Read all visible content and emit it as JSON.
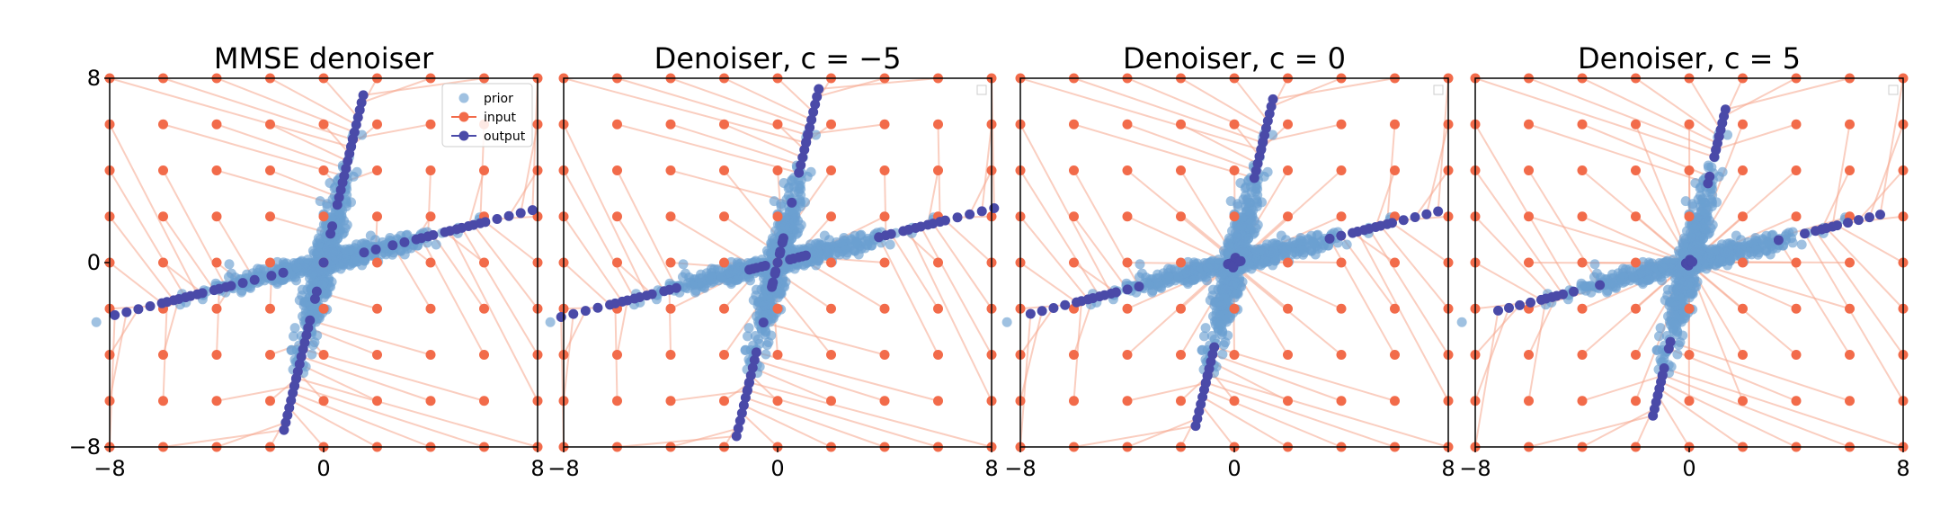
{
  "colors": {
    "prior": "#6b9fd1",
    "input": "#f26b4a",
    "output": "#4a4aa8",
    "line": "#f5a58d"
  },
  "chart_data": [
    {
      "type": "scatter",
      "title": "MMSE denoiser",
      "xlim": [
        -8,
        8
      ],
      "ylim": [
        -8,
        8
      ],
      "xticks": [
        "−8",
        "0",
        "8"
      ],
      "yticks": [
        "−8",
        "0",
        "8"
      ],
      "show_yticks": true,
      "legend": {
        "position": "top-right",
        "entries": [
          "prior",
          "input",
          "output"
        ]
      },
      "output_mode": "mmse",
      "grid": false
    },
    {
      "type": "scatter",
      "title": "Denoiser, c = −5",
      "xlim": [
        -8,
        8
      ],
      "ylim": [
        -8,
        8
      ],
      "xticks": [
        "−8",
        "0",
        "8"
      ],
      "yticks": [],
      "show_yticks": false,
      "legend": {
        "position": "top-right",
        "entries": []
      },
      "output_mode": "cneg5",
      "grid": false
    },
    {
      "type": "scatter",
      "title": "Denoiser, c = 0",
      "xlim": [
        -8,
        8
      ],
      "ylim": [
        -8,
        8
      ],
      "xticks": [
        "−8",
        "0",
        "8"
      ],
      "yticks": [],
      "show_yticks": false,
      "legend": {
        "position": "top-right",
        "entries": []
      },
      "output_mode": "c0",
      "grid": false
    },
    {
      "type": "scatter",
      "title": "Denoiser, c = 5",
      "xlim": [
        -8,
        8
      ],
      "ylim": [
        -8,
        8
      ],
      "xticks": [
        "−8",
        "0",
        "8"
      ],
      "yticks": [],
      "show_yticks": false,
      "legend": {
        "position": "top-right",
        "entries": []
      },
      "output_mode": "c5",
      "grid": false
    }
  ]
}
